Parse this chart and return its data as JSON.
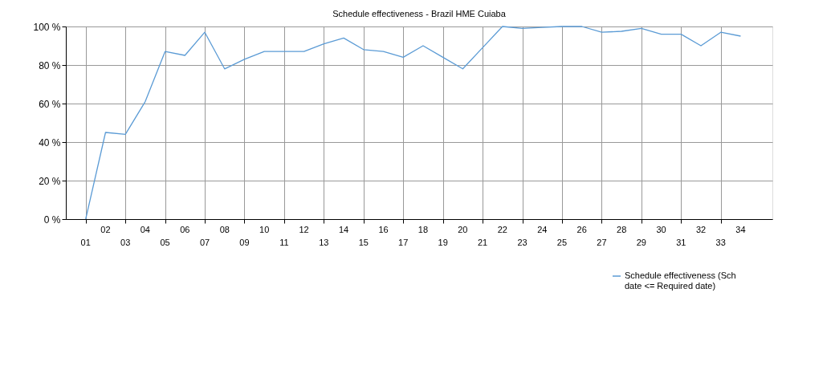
{
  "chart_data": {
    "type": "line",
    "title": "Schedule effectiveness - Brazil HME Cuiaba",
    "categories": [
      "01",
      "02",
      "03",
      "04",
      "05",
      "06",
      "07",
      "08",
      "09",
      "10",
      "11",
      "12",
      "13",
      "14",
      "15",
      "16",
      "17",
      "18",
      "19",
      "20",
      "21",
      "22",
      "23",
      "24",
      "25",
      "26",
      "27",
      "28",
      "29",
      "30",
      "31",
      "32",
      "33",
      "34"
    ],
    "series": [
      {
        "name": "Schedule effectiveness (Sch date <= Required date)",
        "color": "#5b9bd5",
        "values": [
          0,
          45,
          44,
          61,
          87,
          85,
          97,
          78,
          83,
          87,
          87,
          87,
          91,
          94,
          88,
          87,
          84,
          90,
          84,
          78,
          89,
          100,
          99,
          99.5,
          100,
          100,
          97,
          97.5,
          99,
          96,
          96,
          90,
          97,
          95
        ]
      }
    ],
    "ylim": [
      0,
      100
    ],
    "yticks": [
      {
        "value": 0,
        "label": "0 %"
      },
      {
        "value": 20,
        "label": "20 %"
      },
      {
        "value": 40,
        "label": "40 %"
      },
      {
        "value": 60,
        "label": "60 %"
      },
      {
        "value": 80,
        "label": "80 %"
      },
      {
        "value": 100,
        "label": "100 %"
      }
    ],
    "grid": true,
    "legend": "bottom right",
    "marker": "none",
    "line_style": "solid"
  }
}
